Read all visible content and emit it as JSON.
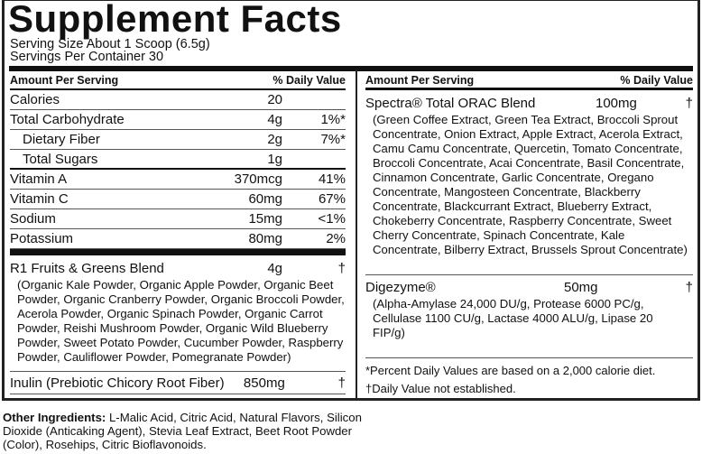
{
  "title": "Supplement Facts",
  "serving_size": "Serving Size About 1 Scoop (6.5g)",
  "servings_per_container": "Servings Per Container 30",
  "left": {
    "header": {
      "amount": "Amount Per Serving",
      "dv": "% Daily Value"
    },
    "rows": [
      {
        "name": "Calories",
        "amount": "20",
        "dv": ""
      },
      {
        "name": "Total Carbohydrate",
        "amount": "4g",
        "dv": "1%*"
      },
      {
        "name": "Dietary Fiber",
        "amount": "2g",
        "dv": "7%*"
      },
      {
        "name": "Total Sugars",
        "amount": "1g",
        "dv": ""
      },
      {
        "name": "Vitamin A",
        "amount": "370mcg",
        "dv": "41%"
      },
      {
        "name": "Vitamin C",
        "amount": "60mg",
        "dv": "67%"
      },
      {
        "name": "Sodium",
        "amount": "15mg",
        "dv": "<1%"
      },
      {
        "name": "Potassium",
        "amount": "80mg",
        "dv": "2%"
      }
    ],
    "blend": {
      "name": "R1 Fruits & Greens Blend",
      "amount": "4g",
      "dv": "†",
      "ingredients": "(Organic Kale Powder, Organic Apple Powder, Organic Beet Powder, Organic Cranberry Powder, Organic Broccoli Powder, Acerola Powder, Organic Spinach Powder, Organic Carrot Powder, Reishi Mushroom Powder, Organic Wild Blueberry Powder, Sweet Potato Powder, Cucumber Powder, Raspberry Powder, Cauliflower Powder, Pomegranate Powder)"
    },
    "inulin": {
      "name": "Inulin (Prebiotic Chicory Root Fiber)",
      "amount": "850mg",
      "dv": "†"
    }
  },
  "right": {
    "header": {
      "amount": "Amount Per Serving",
      "dv": "% Daily Value"
    },
    "spectra": {
      "name": "Spectra® Total ORAC Blend",
      "amount": "100mg",
      "dv": "†",
      "ingredients": "(Green Coffee Extract, Green Tea Extract, Broccoli Sprout Concentrate, Onion Extract, Apple Extract, Acerola Extract, Camu Camu Concentrate, Quercetin, Tomato Concentrate, Broccoli Concentrate, Acai Concentrate, Basil Concentrate, Cinnamon Concentrate, Garlic Concentrate, Oregano Concentrate, Mangosteen Concentrate, Blackberry Concentrate, Blackcurrant Extract, Blueberry Extract, Chokeberry Concentrate, Raspberry Concentrate, Sweet Cherry Concentrate, Spinach Concentrate, Kale Concentrate, Bilberry Extract, Brussels Sprout Concentrate)"
    },
    "digezyme": {
      "name": "Digezyme®",
      "amount": "50mg",
      "dv": "†",
      "ingredients": "(Alpha-Amylase 24,000 DU/g, Protease 6000 PC/g, Cellulase 1100 CU/g, Lactase 4000 ALU/g, Lipase 20 FIP/g)"
    },
    "footnote1": "*Percent Daily Values are based on a 2,000 calorie diet.",
    "footnote2": "†Daily Value not established."
  },
  "other": {
    "label": "Other Ingredients:",
    "text": " L-Malic Acid, Citric Acid, Natural Flavors, Silicon Dioxide (Anticaking Agent), Stevia Leaf Extract, Beet Root Powder (Color), Rosehips, Citric Bioflavonoids."
  }
}
